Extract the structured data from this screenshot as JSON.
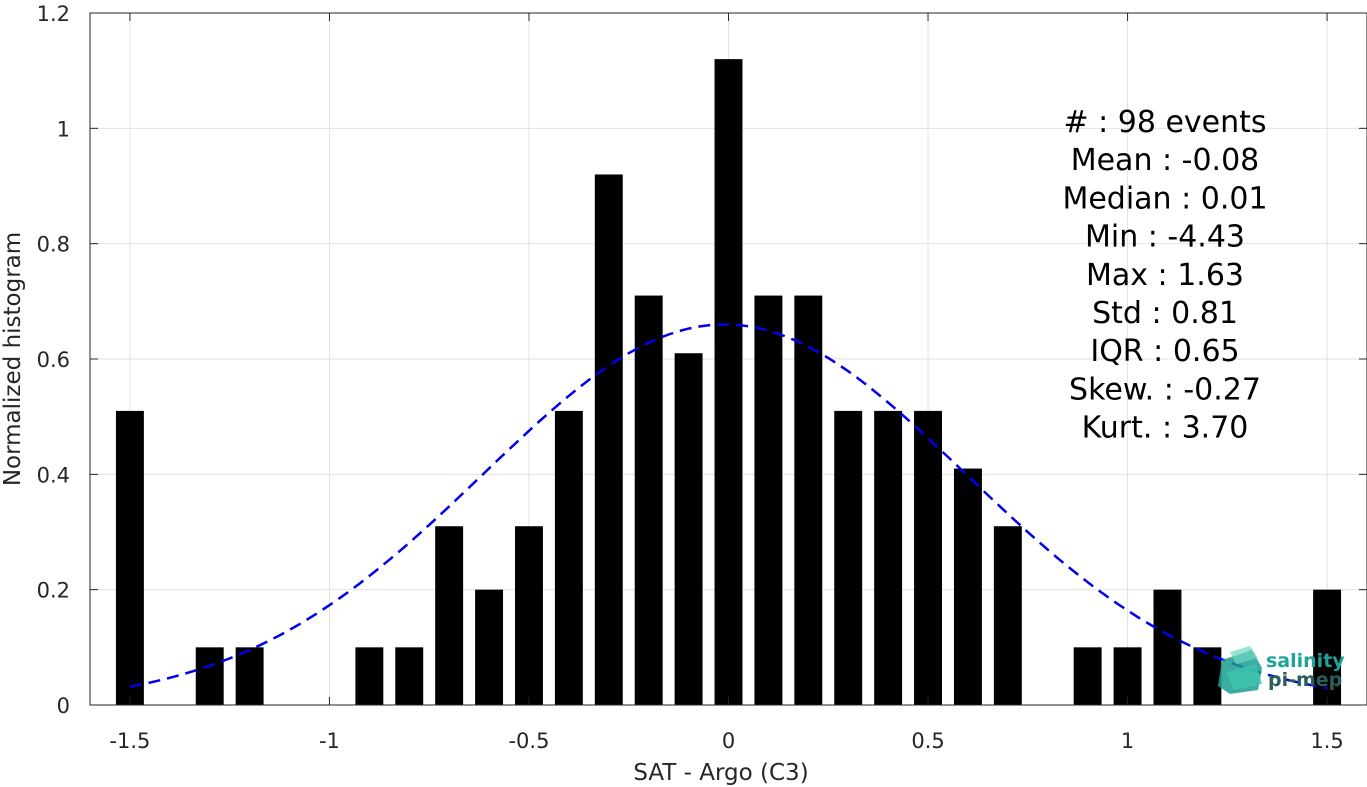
{
  "chart_data": {
    "type": "bar",
    "xlabel": "SAT - Argo (C3)",
    "ylabel": "Normalized histogram",
    "xlim": [
      -1.6,
      1.6
    ],
    "ylim": [
      0,
      1.2
    ],
    "xticks": [
      -1.5,
      -1,
      -0.5,
      0,
      0.5,
      1,
      1.5
    ],
    "xtick_labels": [
      "-1.5",
      "-1",
      "-0.5",
      "0",
      "0.5",
      "1",
      "1.5"
    ],
    "yticks": [
      0,
      0.2,
      0.4,
      0.6,
      0.8,
      1,
      1.2
    ],
    "ytick_labels": [
      "0",
      "0.2",
      "0.4",
      "0.6",
      "0.8",
      "1",
      "1.2"
    ],
    "grid": true,
    "bar_width": 0.07,
    "bars": {
      "x": [
        -1.5,
        -1.3,
        -1.2,
        -0.9,
        -0.8,
        -0.7,
        -0.6,
        -0.5,
        -0.4,
        -0.3,
        -0.2,
        -0.1,
        0.0,
        0.1,
        0.2,
        0.3,
        0.4,
        0.5,
        0.6,
        0.7,
        0.9,
        1.0,
        1.1,
        1.2,
        1.5
      ],
      "values": [
        0.51,
        0.1,
        0.1,
        0.1,
        0.1,
        0.31,
        0.2,
        0.31,
        0.51,
        0.92,
        0.71,
        0.61,
        1.12,
        0.71,
        0.71,
        0.51,
        0.51,
        0.51,
        0.41,
        0.31,
        0.1,
        0.1,
        0.2,
        0.1,
        0.2
      ],
      "color": "#000000"
    },
    "fit_curve": {
      "style": "dashed",
      "color": "#0000ee",
      "mean": -0.01,
      "std": 0.605,
      "peak": 0.66,
      "x_range": [
        -1.5,
        1.5
      ]
    },
    "stats": [
      "#  : 98 events",
      "Mean : -0.08",
      "Median : 0.01",
      "Min : -4.43",
      "Max : 1.63",
      "Std : 0.81",
      "IQR : 0.65",
      "Skew. : -0.27",
      "Kurt. : 3.70"
    ]
  },
  "logo": {
    "line1": "salinity",
    "line2": "pi-mep",
    "color": "#1fa398"
  }
}
